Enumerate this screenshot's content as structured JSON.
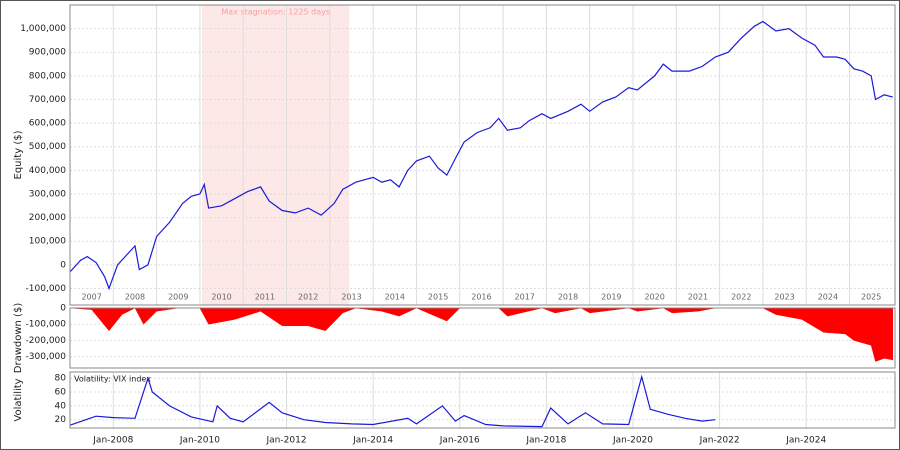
{
  "chart_data": [
    {
      "type": "line",
      "ylabel": "Equity ($)",
      "color": "#1a1adc",
      "grid": true,
      "xlim": [
        2007,
        2026.05
      ],
      "ylim": [
        -170000,
        1100000
      ],
      "xticks": [
        2007,
        2008,
        2009,
        2010,
        2011,
        2012,
        2013,
        2014,
        2015,
        2016,
        2017,
        2018,
        2019,
        2020,
        2021,
        2022,
        2023,
        2024,
        2025
      ],
      "yticks": [
        {
          "value": -100000,
          "label": "-100,000"
        },
        0,
        {
          "value": 100000,
          "label": "100,000"
        },
        {
          "value": 200000,
          "label": "200,000"
        },
        {
          "value": 300000,
          "label": "300,000"
        },
        {
          "value": 400000,
          "label": "400,000"
        },
        {
          "value": 500000,
          "label": "500,000"
        },
        {
          "value": 600000,
          "label": "600,000"
        },
        {
          "value": 700000,
          "label": "700,000"
        },
        {
          "value": 800000,
          "label": "800,000"
        },
        {
          "value": 900000,
          "label": "900,000"
        },
        {
          "value": 1000000,
          "label": "1,000,000"
        }
      ],
      "annotation": {
        "text": "Max stagnation: 1225 days",
        "x": [
          2010.05,
          2013.45
        ],
        "color": "#fde8e8"
      },
      "x": [
        2007.0,
        2007.25,
        2007.4,
        2007.6,
        2007.8,
        2007.9,
        2008.1,
        2008.3,
        2008.5,
        2008.6,
        2008.8,
        2009.0,
        2009.3,
        2009.6,
        2009.8,
        2010.0,
        2010.1,
        2010.2,
        2010.5,
        2010.8,
        2011.1,
        2011.4,
        2011.6,
        2011.9,
        2012.2,
        2012.5,
        2012.8,
        2013.1,
        2013.3,
        2013.6,
        2014.0,
        2014.2,
        2014.4,
        2014.6,
        2014.8,
        2015.0,
        2015.3,
        2015.5,
        2015.7,
        2015.9,
        2016.1,
        2016.4,
        2016.7,
        2016.9,
        2017.1,
        2017.4,
        2017.6,
        2017.9,
        2018.1,
        2018.5,
        2018.8,
        2019.0,
        2019.3,
        2019.6,
        2019.9,
        2020.1,
        2020.5,
        2020.7,
        2020.9,
        2021.3,
        2021.6,
        2021.9,
        2022.2,
        2022.5,
        2022.8,
        2023.0,
        2023.3,
        2023.6,
        2023.9,
        2024.2,
        2024.4,
        2024.7,
        2024.9,
        2025.1,
        2025.3,
        2025.5,
        2025.6,
        2025.8,
        2026.0
      ],
      "values": [
        -30000,
        20000,
        35000,
        10000,
        -50000,
        -100000,
        0,
        40000,
        80000,
        -20000,
        0,
        120000,
        180000,
        260000,
        290000,
        300000,
        340000,
        240000,
        250000,
        280000,
        310000,
        330000,
        270000,
        230000,
        220000,
        240000,
        210000,
        260000,
        320000,
        350000,
        370000,
        350000,
        360000,
        330000,
        400000,
        440000,
        460000,
        410000,
        380000,
        450000,
        520000,
        560000,
        580000,
        620000,
        570000,
        580000,
        610000,
        640000,
        620000,
        650000,
        680000,
        650000,
        690000,
        710000,
        750000,
        740000,
        800000,
        850000,
        820000,
        820000,
        840000,
        880000,
        900000,
        960000,
        1010000,
        1030000,
        990000,
        1000000,
        960000,
        930000,
        880000,
        880000,
        870000,
        830000,
        820000,
        800000,
        700000,
        720000,
        710000
      ]
    },
    {
      "type": "area",
      "ylabel": "Drawdown ($)",
      "color": "#ff0000",
      "grid": true,
      "xlim": [
        2007,
        2026.05
      ],
      "ylim": [
        -370000,
        0
      ],
      "yticks": [
        {
          "value": -300000,
          "label": "-300,000"
        },
        {
          "value": -200000,
          "label": "-200,000"
        },
        {
          "value": -100000,
          "label": "-100,000"
        },
        0
      ],
      "x": [
        2007.0,
        2007.5,
        2007.9,
        2008.2,
        2008.5,
        2008.7,
        2009.0,
        2009.5,
        2010.0,
        2010.2,
        2010.8,
        2011.4,
        2011.9,
        2012.5,
        2012.9,
        2013.3,
        2013.6,
        2014.2,
        2014.6,
        2015.0,
        2015.7,
        2016.0,
        2016.9,
        2017.1,
        2017.9,
        2018.2,
        2018.8,
        2019.0,
        2019.9,
        2020.1,
        2020.7,
        2020.9,
        2021.5,
        2021.9,
        2022.5,
        2023.0,
        2023.3,
        2023.9,
        2024.4,
        2024.9,
        2025.1,
        2025.5,
        2025.6,
        2025.8,
        2026.0
      ],
      "values": [
        0,
        -10000,
        -140000,
        -40000,
        0,
        -100000,
        -20000,
        0,
        0,
        -100000,
        -70000,
        -20000,
        -110000,
        -110000,
        -140000,
        -30000,
        0,
        -20000,
        -50000,
        0,
        -80000,
        0,
        0,
        -50000,
        0,
        -30000,
        0,
        -30000,
        0,
        -20000,
        0,
        -30000,
        -20000,
        0,
        0,
        0,
        -40000,
        -70000,
        -150000,
        -160000,
        -200000,
        -230000,
        -330000,
        -310000,
        -320000
      ]
    },
    {
      "type": "line",
      "ylabel": "Volatility",
      "grid": true,
      "xlim": [
        2007,
        2026.05
      ],
      "ylim": [
        8,
        89
      ],
      "xticks": [
        {
          "value": 2008,
          "label": "Jan-2008"
        },
        {
          "value": 2010,
          "label": "Jan-2010"
        },
        {
          "value": 2012,
          "label": "Jan-2012"
        },
        {
          "value": 2014,
          "label": "Jan-2014"
        },
        {
          "value": 2016,
          "label": "Jan-2016"
        },
        {
          "value": 2018,
          "label": "Jan-2018"
        },
        {
          "value": 2020,
          "label": "Jan-2020"
        },
        {
          "value": 2022,
          "label": "Jan-2022"
        },
        {
          "value": 2024,
          "label": "Jan-2024"
        }
      ],
      "yticks": [
        20,
        40,
        60,
        80
      ],
      "x": [
        2007.0,
        2007.6,
        2008.0,
        2008.5,
        2008.8,
        2008.9,
        2009.3,
        2009.8,
        2010.3,
        2010.4,
        2010.7,
        2011.0,
        2011.6,
        2011.9,
        2012.4,
        2012.9,
        2013.5,
        2014.0,
        2014.8,
        2015.0,
        2015.6,
        2015.9,
        2016.1,
        2016.6,
        2017.0,
        2017.9,
        2018.1,
        2018.5,
        2018.9,
        2019.3,
        2019.9,
        2020.2,
        2020.4,
        2020.8,
        2021.2,
        2021.6,
        2021.9
      ],
      "series": [
        {
          "name": "Volatility: VIX index",
          "color": "#1a1adc",
          "values": [
            12,
            25,
            23,
            22,
            80,
            60,
            40,
            24,
            17,
            40,
            22,
            17,
            45,
            30,
            20,
            16,
            14,
            13,
            22,
            14,
            40,
            18,
            26,
            13,
            11,
            10,
            37,
            14,
            30,
            14,
            13,
            82,
            35,
            28,
            22,
            18,
            20
          ]
        }
      ]
    }
  ]
}
